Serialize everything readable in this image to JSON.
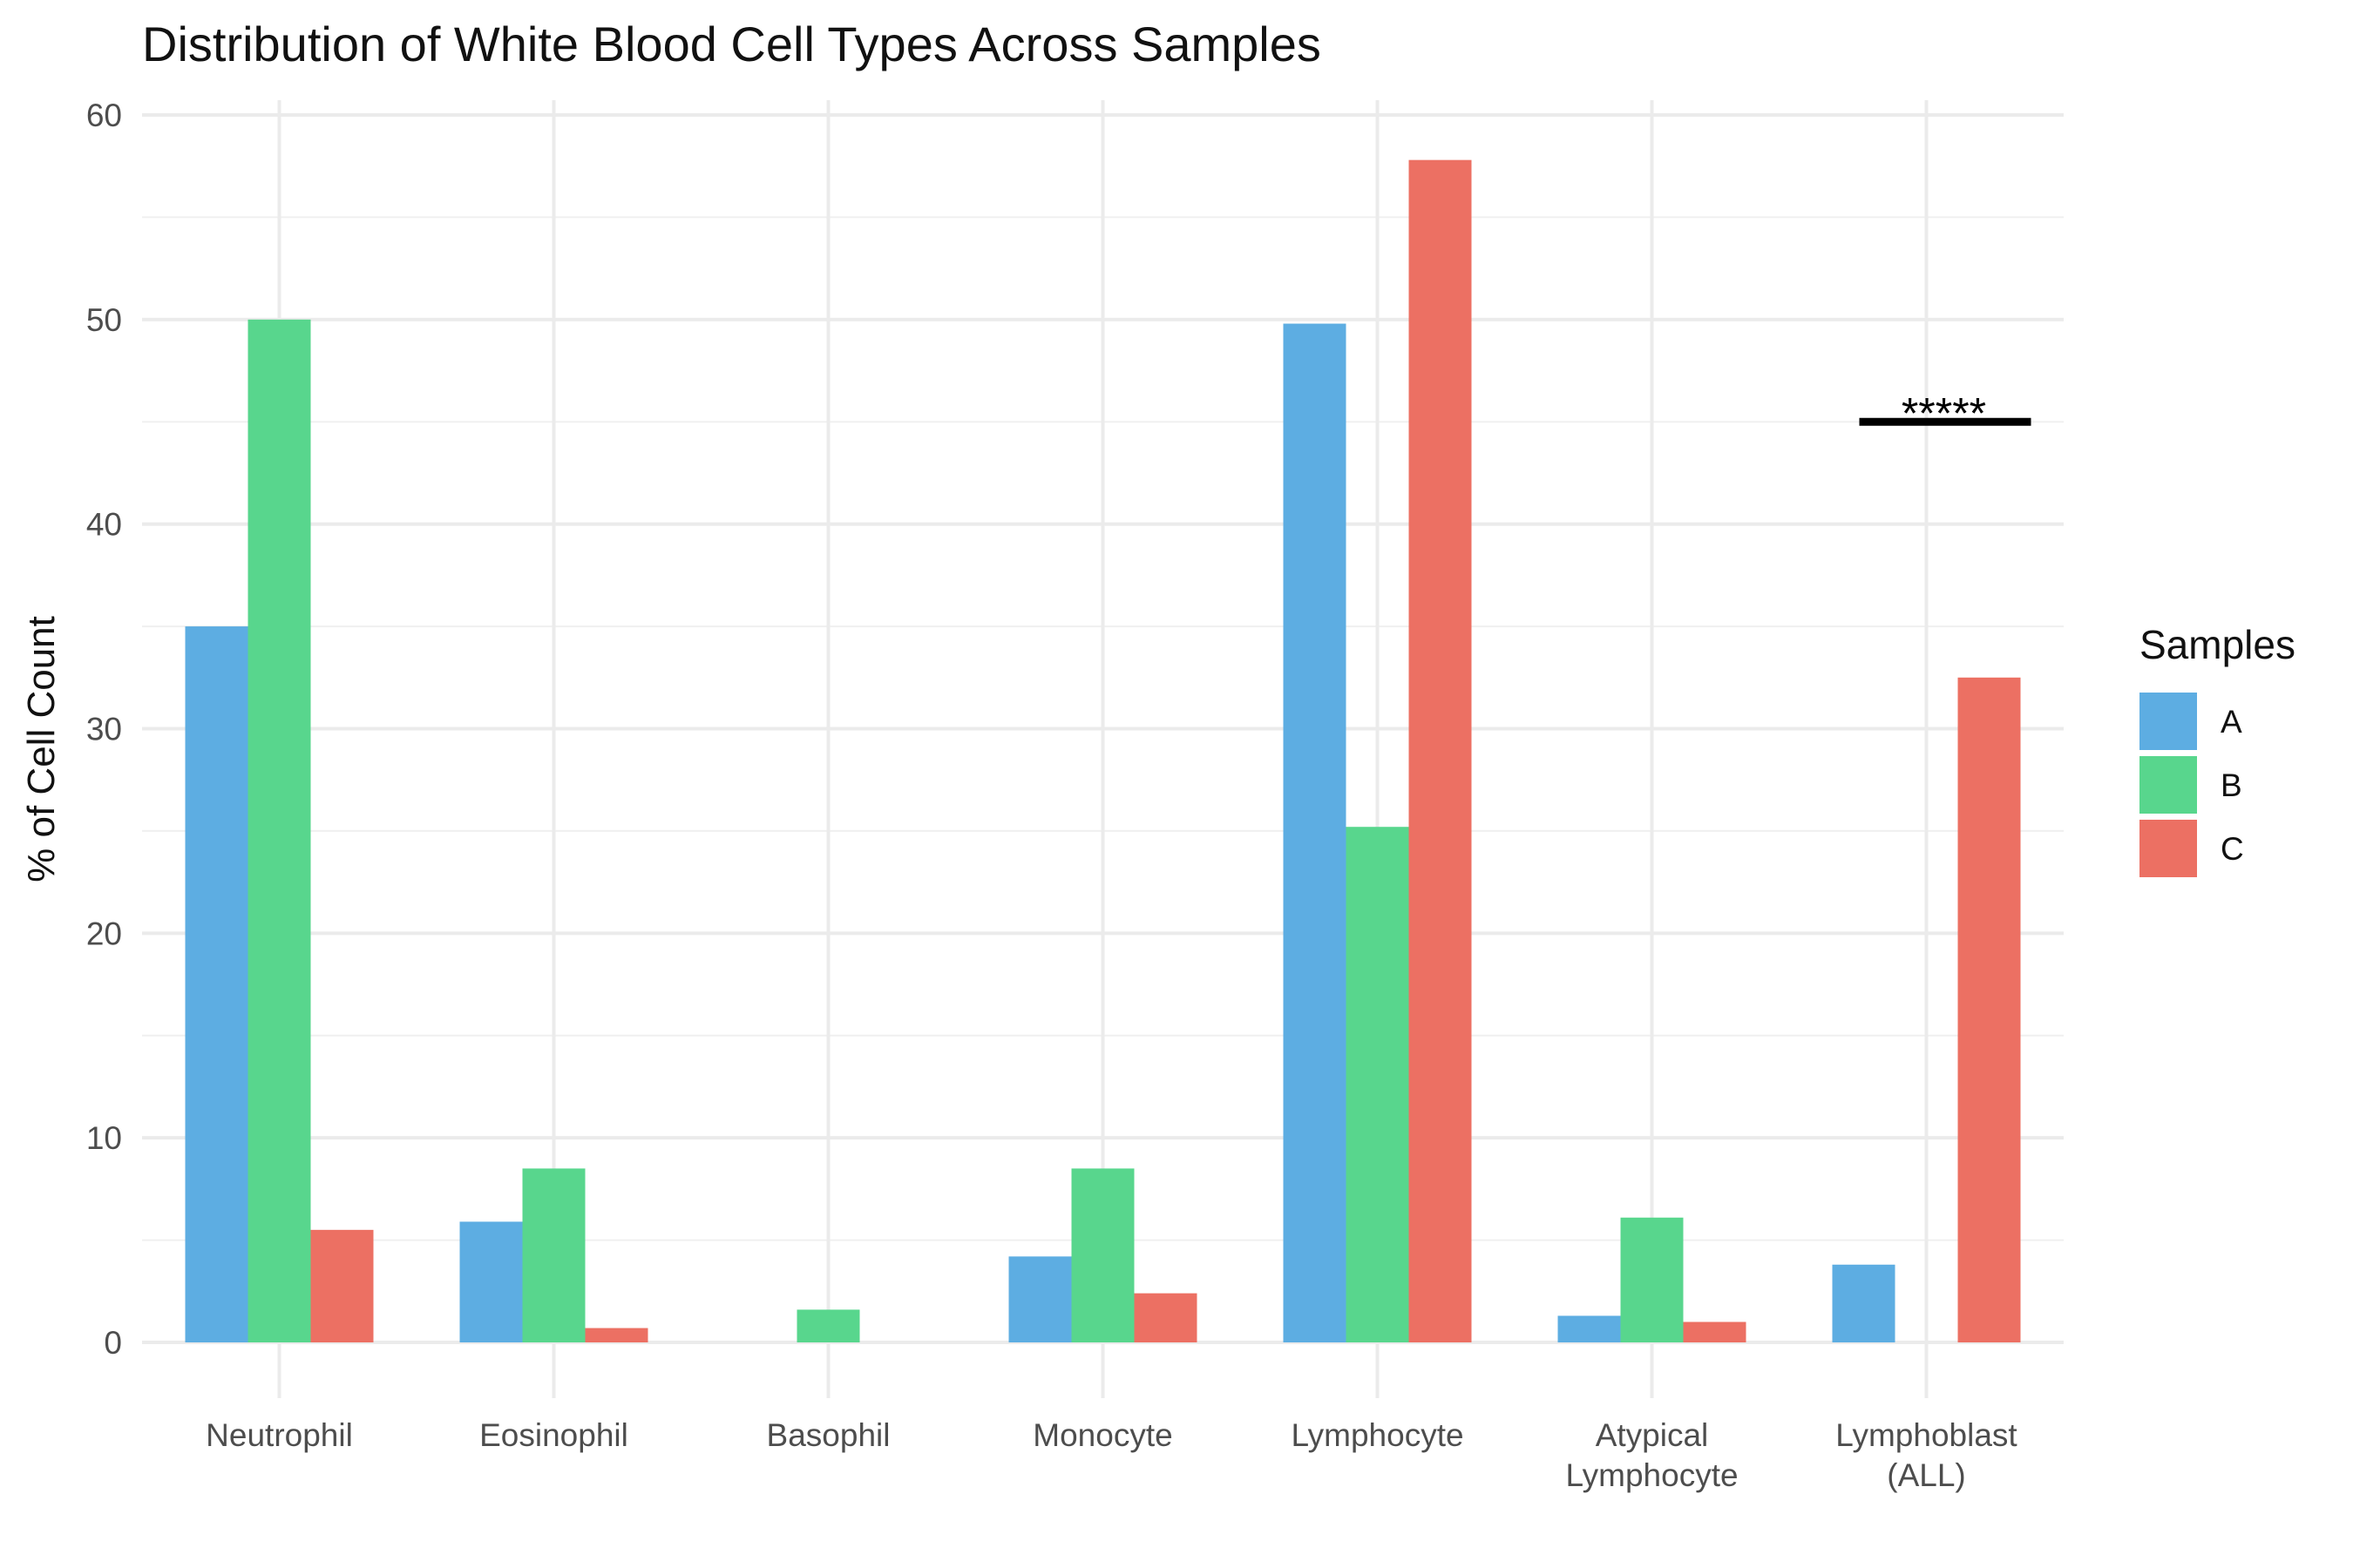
{
  "chart_data": {
    "type": "bar",
    "title": "Distribution of White Blood Cell Types Across Samples",
    "xlabel": "",
    "ylabel": "% of Cell Count",
    "ylim": [
      -3,
      60
    ],
    "yticks": [
      0,
      10,
      20,
      30,
      40,
      50,
      60
    ],
    "grid": true,
    "legend": {
      "title": "Samples",
      "position": "right"
    },
    "categories": [
      [
        "Neutrophil"
      ],
      [
        "Eosinophil"
      ],
      [
        "Basophil"
      ],
      [
        "Monocyte"
      ],
      [
        "Lymphocyte"
      ],
      [
        "Atypical",
        "Lymphocyte"
      ],
      [
        "Lymphoblast",
        "(ALL)"
      ]
    ],
    "series": [
      {
        "name": "A",
        "color": "#5DADE2",
        "values": [
          35.0,
          5.9,
          0.0,
          4.2,
          49.8,
          1.3,
          3.8
        ]
      },
      {
        "name": "B",
        "color": "#58D68D",
        "values": [
          50.0,
          8.5,
          1.6,
          8.5,
          25.2,
          6.1,
          0.0
        ]
      },
      {
        "name": "C",
        "color": "#EC7063",
        "values": [
          5.5,
          0.7,
          0.0,
          2.4,
          57.8,
          1.0,
          32.5
        ]
      }
    ],
    "annotations": [
      {
        "text": "*****",
        "category_index": 6,
        "y": 45
      }
    ]
  }
}
